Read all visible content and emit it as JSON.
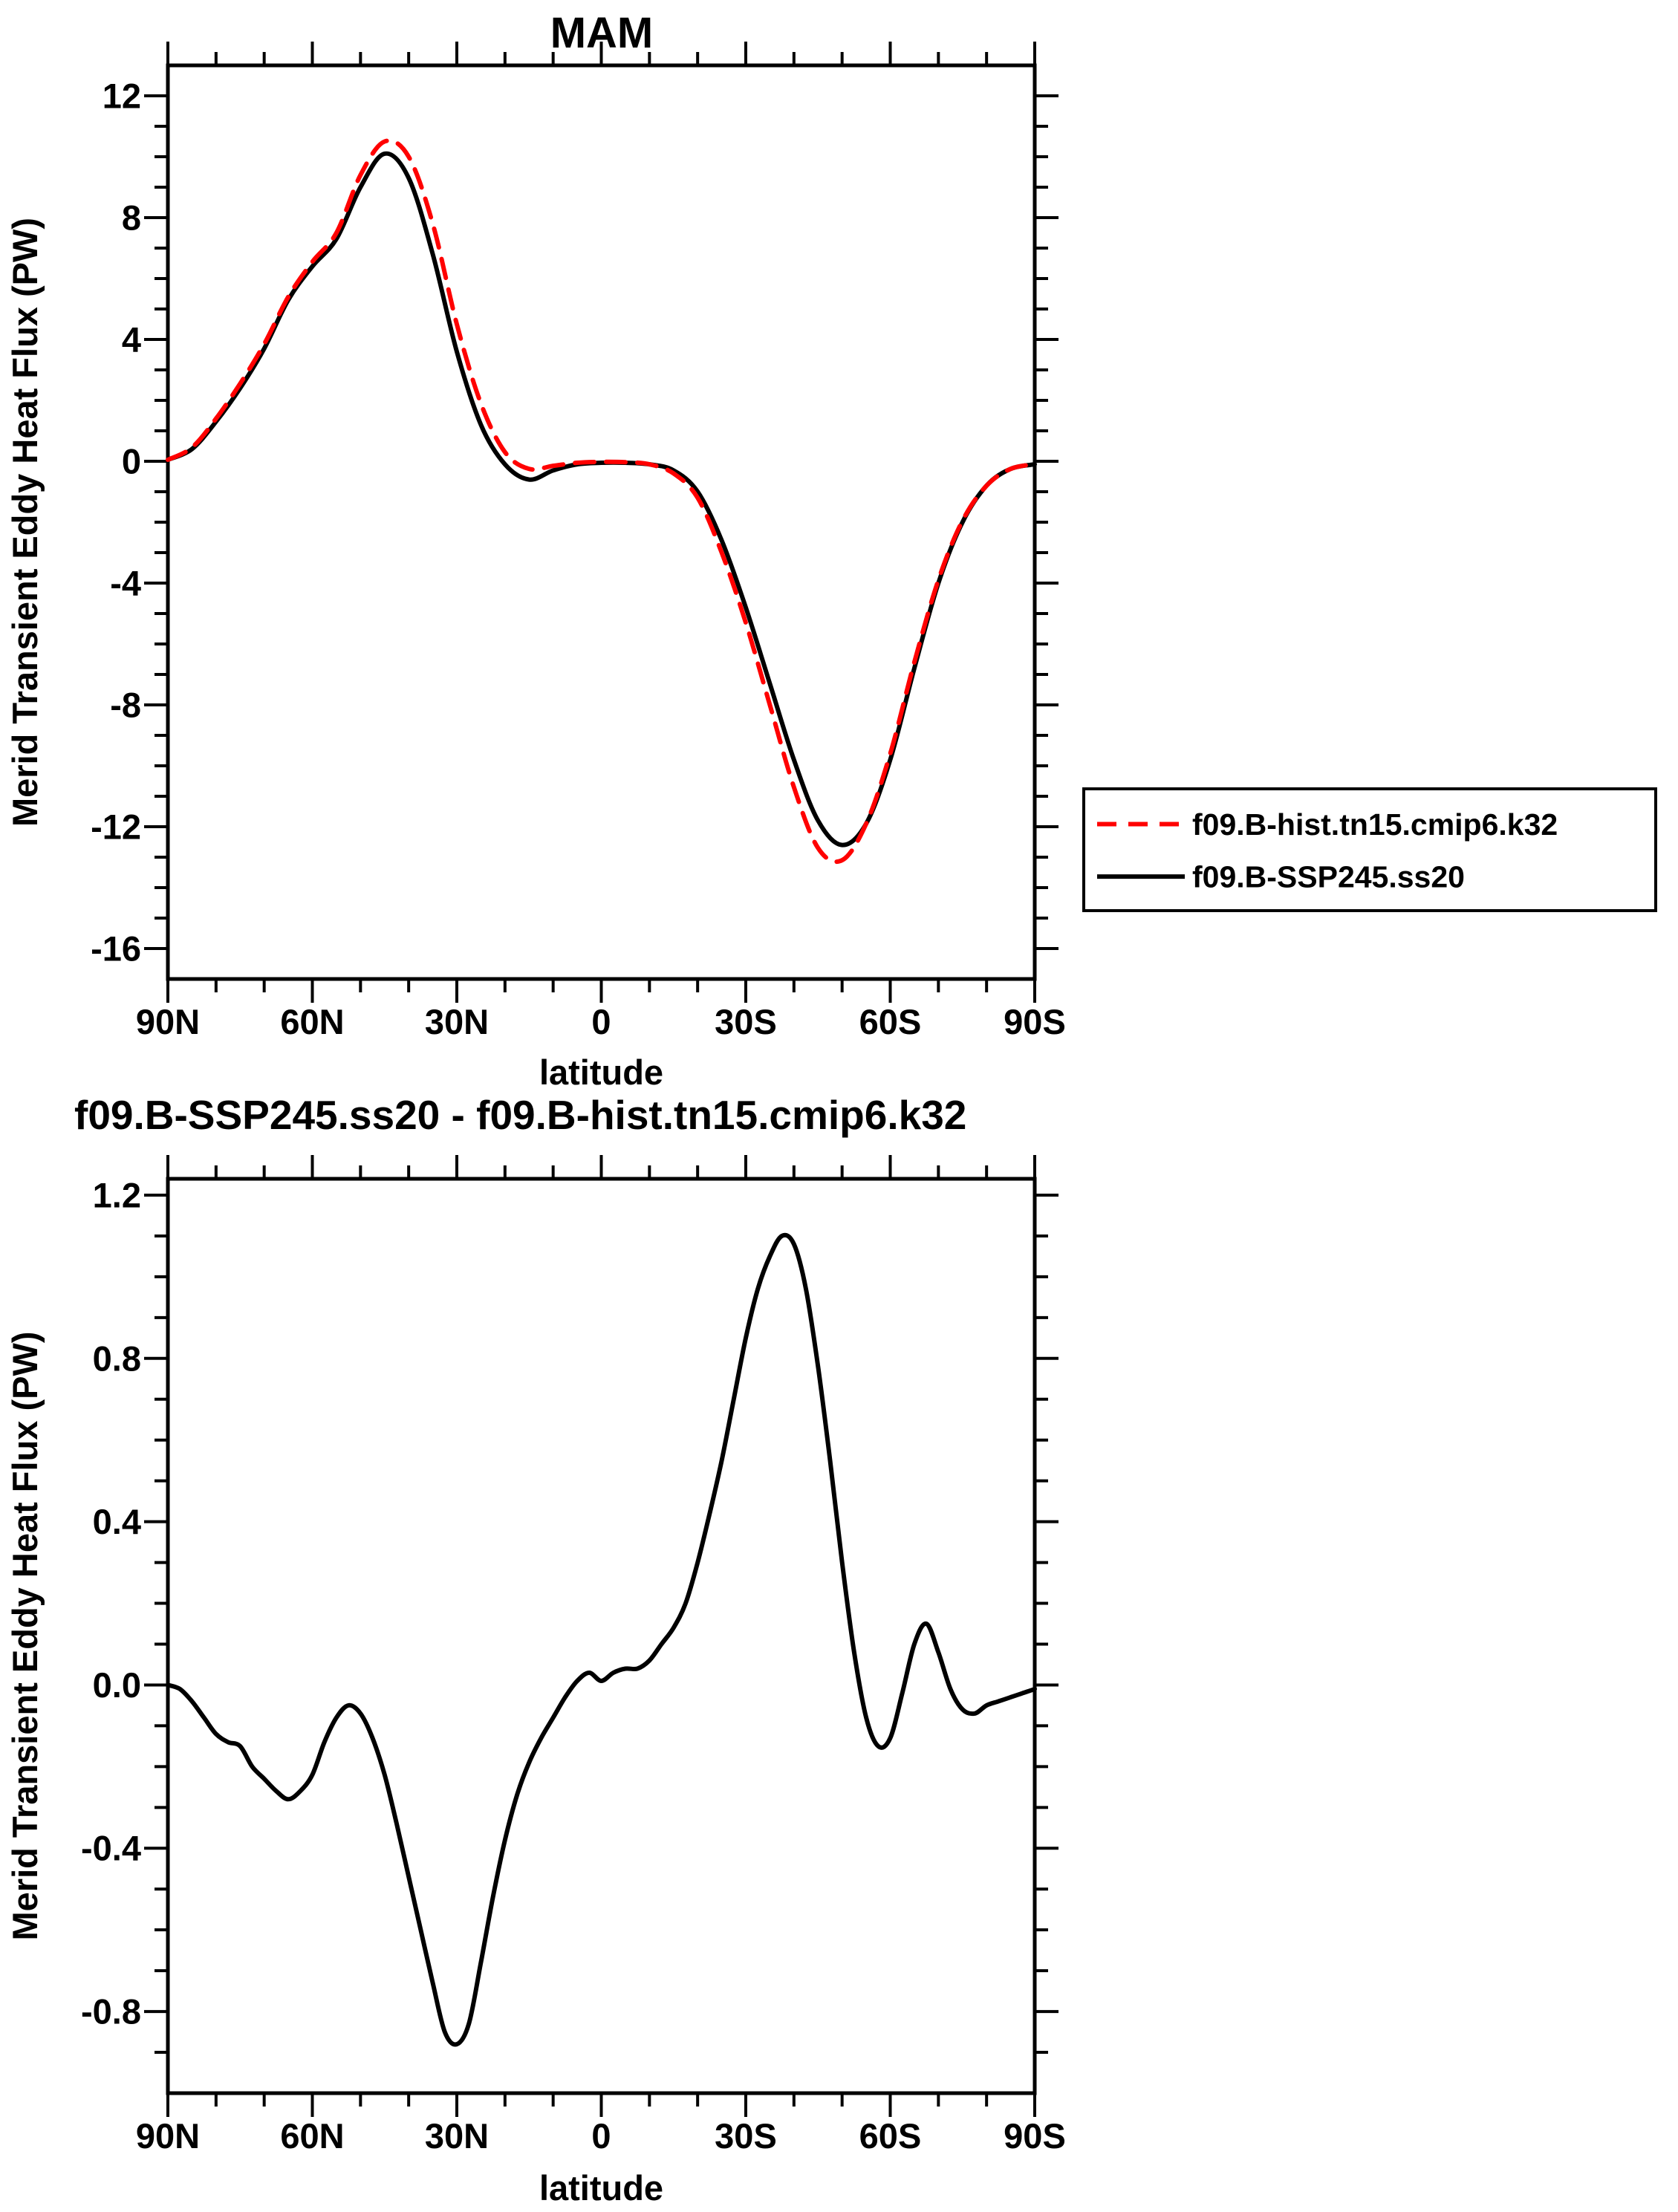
{
  "page": {
    "background": "#ffffff"
  },
  "chart_data": [
    {
      "type": "line",
      "title": "MAM",
      "ylabel": "Merid Transient Eddy Heat Flux (PW)",
      "xlabel": "latitude",
      "grid": false,
      "xlim": [
        90,
        -90
      ],
      "xtick_vals": [
        90,
        60,
        30,
        0,
        -30,
        -60,
        -90
      ],
      "xtick_labels": [
        "90N",
        "60N",
        "30N",
        "0",
        "30S",
        "60S",
        "90S"
      ],
      "xminor_step": 10,
      "ylim": [
        -17,
        13
      ],
      "ytick_vals": [
        -16,
        -12,
        -8,
        -4,
        0,
        4,
        8,
        12
      ],
      "ytick_labels": [
        "-16",
        "-12",
        "-8",
        "-4",
        "0",
        "4",
        "8",
        "12"
      ],
      "yminor_step": 1,
      "legend": {
        "position": "outside-right-bottom",
        "border_color": "#000000",
        "background": "#ffffff"
      },
      "x": [
        90,
        85,
        80,
        75,
        70,
        65,
        60,
        55,
        50,
        45,
        40,
        35,
        30,
        25,
        20,
        15,
        10,
        5,
        0,
        -5,
        -10,
        -15,
        -20,
        -25,
        -30,
        -35,
        -40,
        -45,
        -50,
        -55,
        -60,
        -65,
        -70,
        -75,
        -80,
        -85,
        -90
      ],
      "series": [
        {
          "name": "f09.B-hist.tn15.cmip6.k32",
          "color": "#ff0000",
          "line_style": "dashed",
          "values": [
            0.05,
            0.45,
            1.4,
            2.55,
            3.85,
            5.4,
            6.55,
            7.5,
            9.4,
            10.5,
            10.0,
            7.8,
            4.5,
            1.9,
            0.3,
            -0.25,
            -0.15,
            -0.05,
            -0.02,
            -0.03,
            -0.1,
            -0.4,
            -1.2,
            -3.0,
            -5.3,
            -8.0,
            -10.7,
            -12.7,
            -13.1,
            -11.9,
            -9.6,
            -6.6,
            -3.9,
            -1.95,
            -0.8,
            -0.25,
            -0.1
          ]
        },
        {
          "name": "f09.B-SSP245.ss20",
          "color": "#000000",
          "line_style": "solid",
          "values": [
            0.05,
            0.4,
            1.3,
            2.4,
            3.7,
            5.3,
            6.4,
            7.3,
            9.0,
            10.1,
            9.3,
            6.8,
            3.6,
            1.2,
            -0.1,
            -0.6,
            -0.3,
            -0.1,
            -0.05,
            -0.05,
            -0.1,
            -0.3,
            -1.0,
            -2.6,
            -4.8,
            -7.3,
            -9.8,
            -11.8,
            -12.6,
            -11.9,
            -9.8,
            -6.8,
            -4.0,
            -2.0,
            -0.8,
            -0.25,
            -0.1
          ]
        }
      ]
    },
    {
      "type": "line",
      "title": "f09.B-SSP245.ss20 - f09.B-hist.tn15.cmip6.k32",
      "ylabel": "Merid Transient Eddy Heat Flux (PW)",
      "xlabel": "latitude",
      "grid": false,
      "xlim": [
        90,
        -90
      ],
      "xtick_vals": [
        90,
        60,
        30,
        0,
        -30,
        -60,
        -90
      ],
      "xtick_labels": [
        "90N",
        "60N",
        "30N",
        "0",
        "30S",
        "60S",
        "90S"
      ],
      "xminor_step": 10,
      "ylim": [
        -1.0,
        1.24
      ],
      "ytick_vals": [
        -0.8,
        -0.4,
        0.0,
        0.4,
        0.8,
        1.2
      ],
      "ytick_labels": [
        "-0.8",
        "-0.4",
        "0.0",
        "0.4",
        "0.8",
        "1.2"
      ],
      "yminor_step": 0.1,
      "legend": null,
      "x": [
        90,
        87.5,
        85,
        82.5,
        80,
        77.5,
        75,
        72.5,
        70,
        67.5,
        65,
        62.5,
        60,
        57.5,
        55,
        52.5,
        50,
        47.5,
        45,
        42.5,
        40,
        37.5,
        35,
        32.5,
        30,
        27.5,
        25,
        22.5,
        20,
        17.5,
        15,
        12.5,
        10,
        7.5,
        5,
        2.5,
        0,
        -2.5,
        -5,
        -7.5,
        -10,
        -12.5,
        -15,
        -17.5,
        -20,
        -22.5,
        -25,
        -27.5,
        -30,
        -32.5,
        -35,
        -37.5,
        -40,
        -42.5,
        -45,
        -47.5,
        -50,
        -52.5,
        -55,
        -57.5,
        -60,
        -62.5,
        -65,
        -67.5,
        -70,
        -72.5,
        -75,
        -77.5,
        -80,
        -82.5,
        -85,
        -87.5,
        -90
      ],
      "series": [
        {
          "name": "f09.B-SSP245.ss20 - f09.B-hist.tn15.cmip6.k32",
          "color": "#000000",
          "line_style": "solid",
          "values": [
            0.0,
            -0.01,
            -0.04,
            -0.08,
            -0.12,
            -0.14,
            -0.15,
            -0.2,
            -0.23,
            -0.26,
            -0.28,
            -0.26,
            -0.22,
            -0.14,
            -0.08,
            -0.05,
            -0.07,
            -0.13,
            -0.22,
            -0.34,
            -0.47,
            -0.6,
            -0.73,
            -0.85,
            -0.88,
            -0.83,
            -0.68,
            -0.52,
            -0.38,
            -0.27,
            -0.19,
            -0.13,
            -0.08,
            -0.03,
            0.01,
            0.03,
            0.01,
            0.03,
            0.04,
            0.04,
            0.06,
            0.1,
            0.14,
            0.2,
            0.3,
            0.42,
            0.55,
            0.7,
            0.85,
            0.97,
            1.05,
            1.1,
            1.08,
            0.97,
            0.78,
            0.55,
            0.3,
            0.08,
            -0.08,
            -0.15,
            -0.13,
            -0.02,
            0.1,
            0.15,
            0.08,
            -0.01,
            -0.06,
            -0.07,
            -0.05,
            -0.04,
            -0.03,
            -0.02,
            -0.01
          ]
        }
      ]
    }
  ]
}
